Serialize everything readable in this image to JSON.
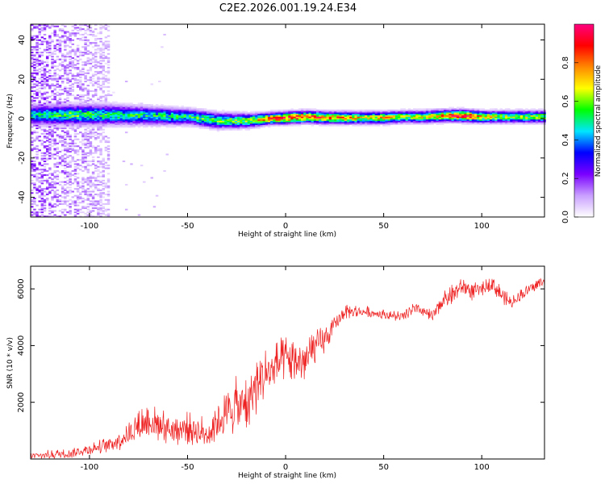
{
  "page_title": "C2E2.2026.001.19.24.E34",
  "chart_data": [
    {
      "type": "heatmap",
      "title": "C2E2.2026.001.19.24.E34",
      "xlabel": "Height of straight line (km)",
      "ylabel": "Frequency (Hz)",
      "xlim": [
        -130,
        132
      ],
      "ylim": [
        -50,
        48
      ],
      "x_ticks": [
        -100,
        -50,
        0,
        50,
        100
      ],
      "y_ticks": [
        -40,
        -20,
        0,
        20,
        40
      ],
      "grid": false,
      "colorbar": {
        "label": "Normalized spectral amplitude",
        "range": [
          0,
          1
        ],
        "ticks": [
          "0.0",
          "0.2",
          "0.4",
          "0.6",
          "0.8"
        ],
        "colors": [
          "#ffffff",
          "#c9a0ff",
          "#7a00ff",
          "#0000ff",
          "#00e5ff",
          "#00ff00",
          "#ffff00",
          "#ff8800",
          "#ff0000",
          "#ff0080"
        ]
      },
      "ridge": {
        "x": [
          -130,
          -110,
          -90,
          -70,
          -50,
          -35,
          -20,
          -10,
          0,
          10,
          20,
          30,
          40,
          50,
          60,
          70,
          80,
          90,
          100,
          110,
          120,
          132
        ],
        "center_freq": [
          2,
          2,
          2,
          1.5,
          1,
          -1,
          -1,
          0,
          0.5,
          1,
          0.5,
          0.5,
          0.5,
          0.5,
          1,
          1,
          1.5,
          1.5,
          1,
          1,
          1,
          1
        ],
        "amplitude": [
          0.45,
          0.55,
          0.5,
          0.5,
          0.5,
          0.55,
          0.6,
          0.75,
          0.85,
          0.85,
          0.8,
          0.75,
          0.65,
          0.7,
          0.6,
          0.65,
          0.75,
          0.9,
          0.7,
          0.6,
          0.6,
          0.6
        ],
        "halfwidth_hz": [
          5,
          5,
          5,
          4.5,
          4,
          4,
          3.5,
          3,
          3,
          3,
          3,
          3,
          3,
          3,
          3,
          3,
          3,
          3,
          3,
          3,
          3,
          3
        ]
      },
      "noise_region": {
        "x_range": [
          -130,
          -90
        ],
        "freq_range": [
          -50,
          48
        ],
        "amplitude": 0.2
      }
    },
    {
      "type": "line",
      "title": "",
      "xlabel": "Height of straight line (km)",
      "ylabel": "SNR (10 * v/v)",
      "xlim": [
        -130,
        132
      ],
      "ylim": [
        0,
        6800
      ],
      "x_ticks": [
        -100,
        -50,
        0,
        50,
        100
      ],
      "y_ticks": [
        2000,
        4000,
        6000
      ],
      "grid": false,
      "series": [
        {
          "color": "#ee2222",
          "x": [
            -130,
            -110,
            -100,
            -90,
            -85,
            -80,
            -75,
            -70,
            -65,
            -60,
            -55,
            -50,
            -45,
            -40,
            -35,
            -30,
            -25,
            -20,
            -15,
            -10,
            -5,
            0,
            5,
            10,
            15,
            20,
            25,
            30,
            40,
            50,
            60,
            65,
            70,
            75,
            80,
            85,
            90,
            95,
            100,
            105,
            110,
            115,
            120,
            125,
            132
          ],
          "values": [
            100,
            200,
            350,
            500,
            650,
            900,
            1200,
            1400,
            1200,
            1100,
            1000,
            1100,
            1000,
            900,
            1300,
            1600,
            1900,
            1900,
            2600,
            3000,
            3300,
            3500,
            3400,
            3500,
            3900,
            4200,
            4700,
            5200,
            5200,
            5100,
            5000,
            5300,
            5200,
            5000,
            5600,
            5800,
            6100,
            5900,
            6000,
            6200,
            5800,
            5500,
            5800,
            6000,
            6300
          ],
          "noise_amplitude": [
            120,
            150,
            180,
            220,
            280,
            350,
            450,
            600,
            500,
            500,
            450,
            450,
            450,
            450,
            550,
            700,
            800,
            900,
            900,
            800,
            700,
            650,
            600,
            650,
            600,
            400,
            250,
            200,
            180,
            150,
            170,
            200,
            180,
            200,
            250,
            300,
            250,
            250,
            200,
            220,
            250,
            200,
            180,
            180,
            180
          ]
        }
      ]
    }
  ]
}
